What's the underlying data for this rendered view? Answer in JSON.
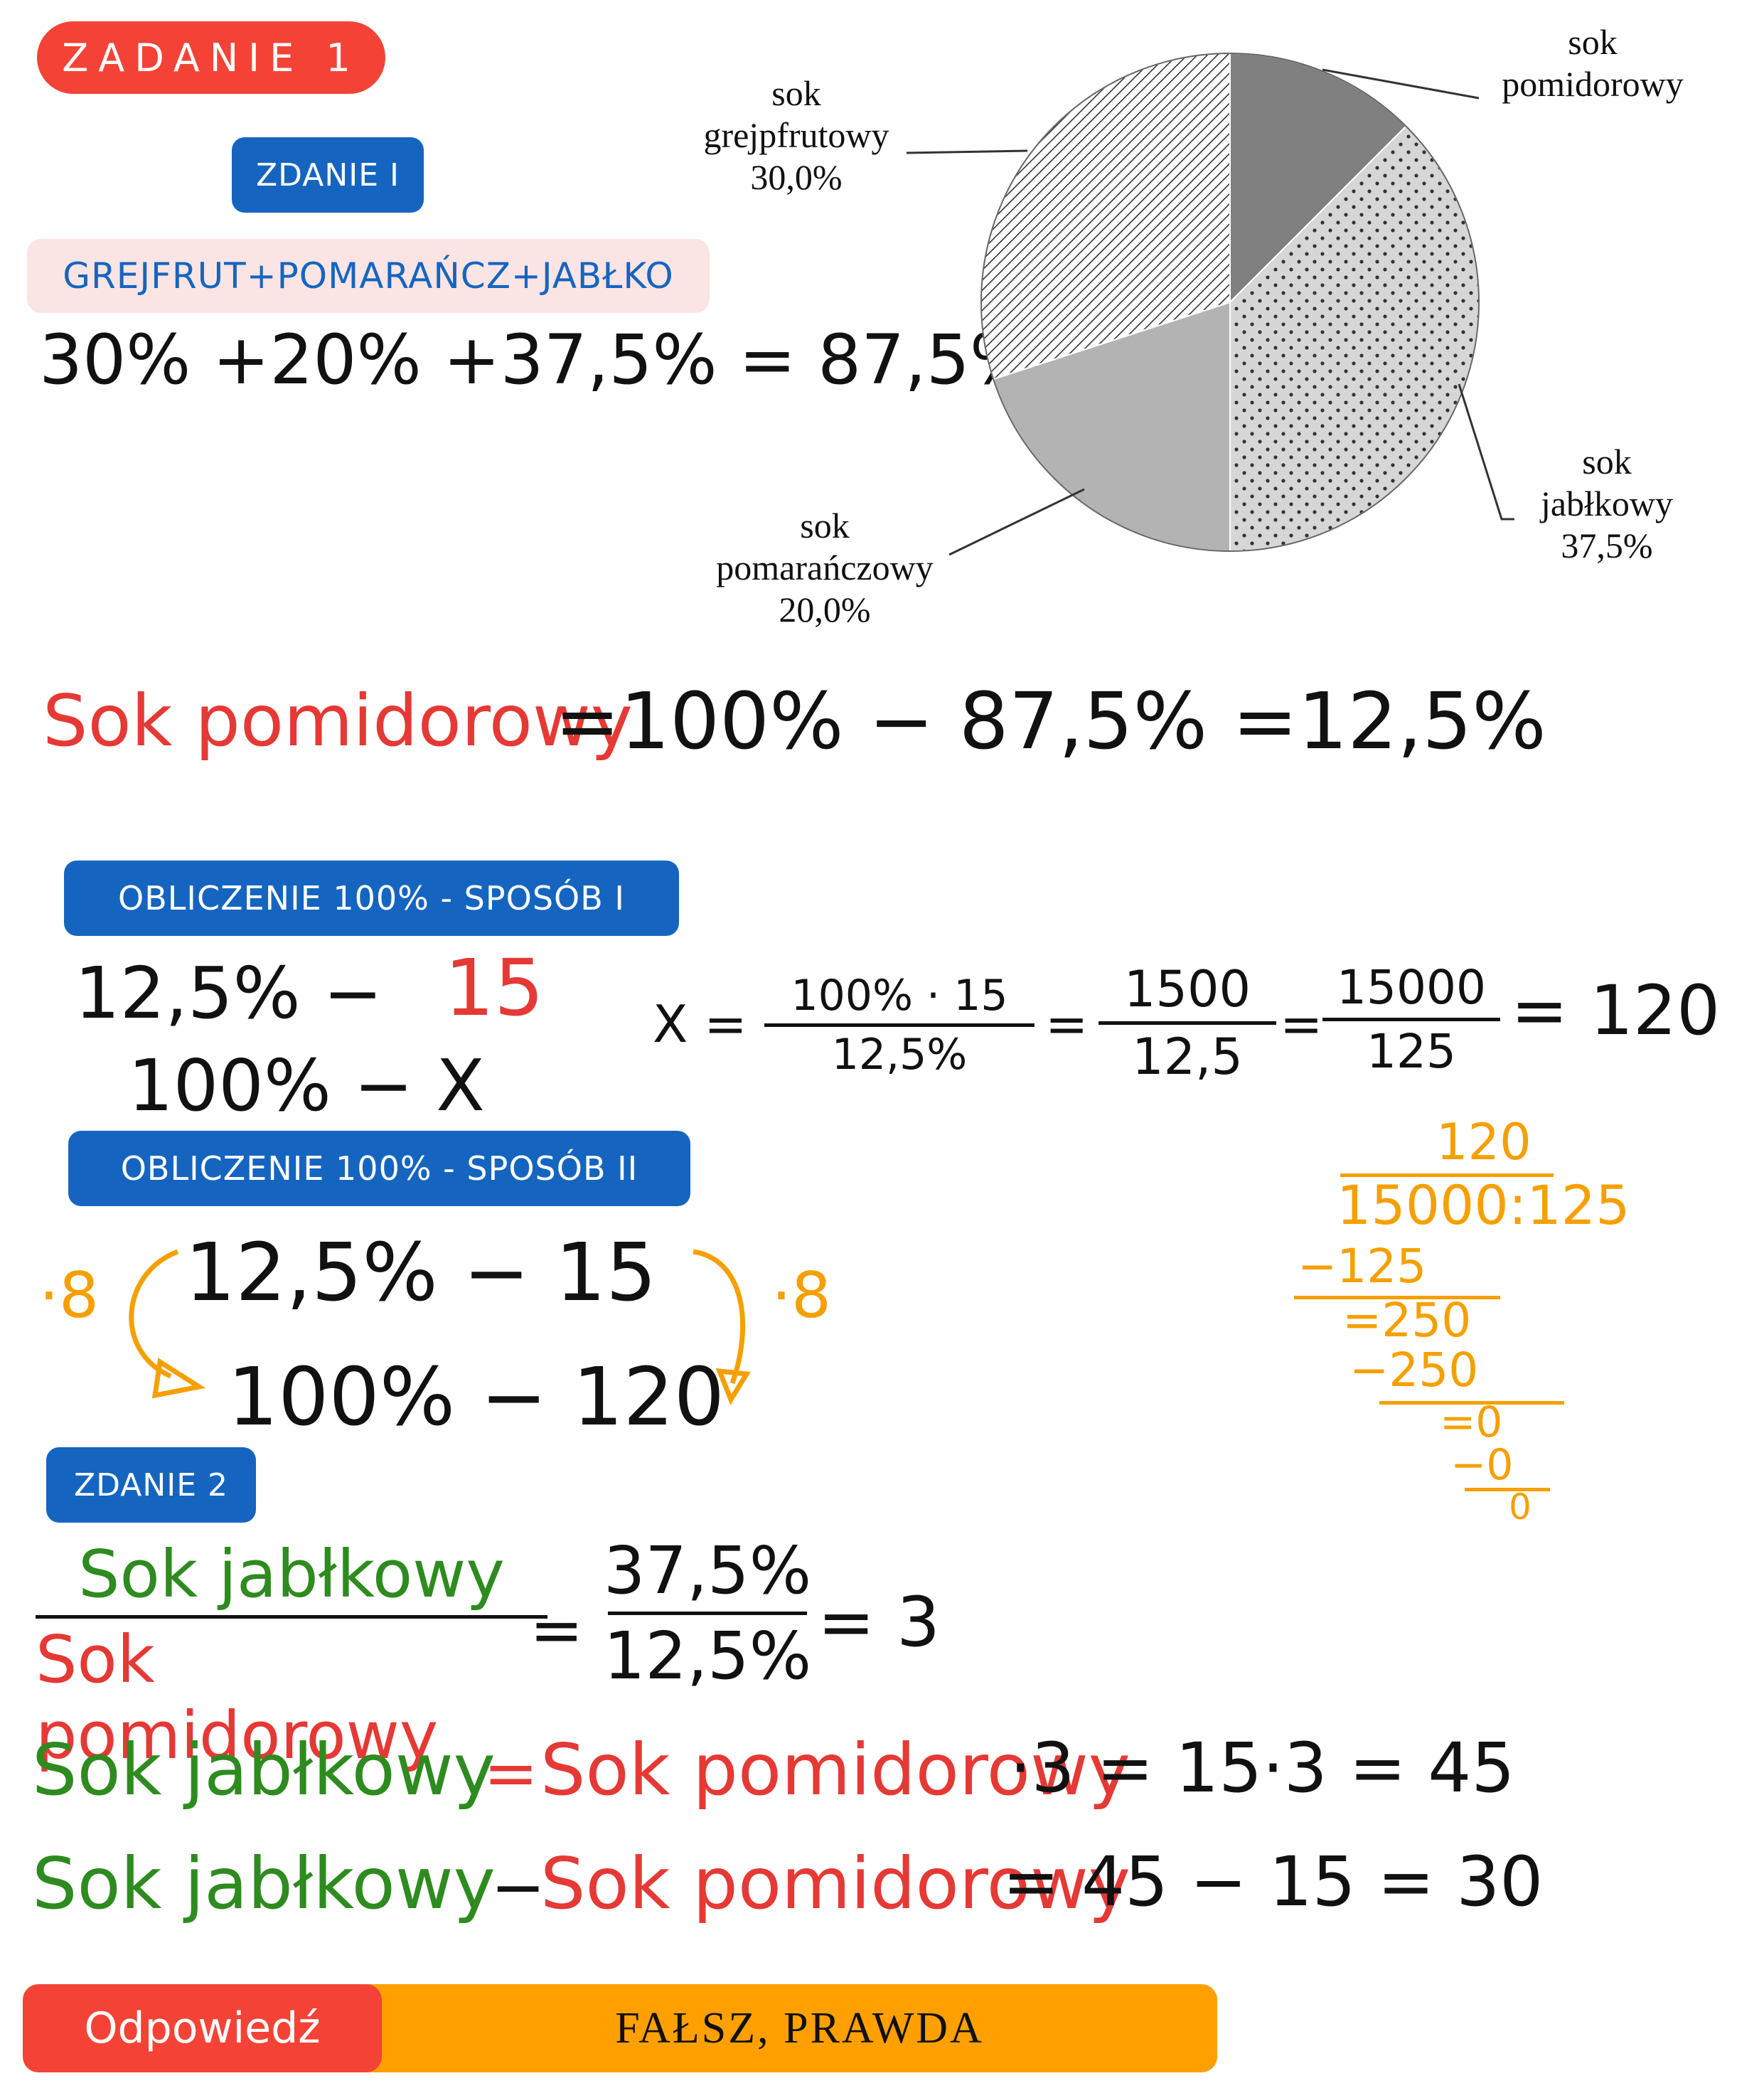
{
  "header": {
    "title": "ZADANIE 1"
  },
  "statement1": {
    "label": "ZDANIE I",
    "sum_label": "GREJFRUT+POMARAŃCZ+JABŁKO",
    "sum_eq": "30% +20% +37,5% = 87,5%",
    "pomidor_lhs": "Sok pomidorowy",
    "pomidor_rhs": "=100% − 87,5% =12,5%"
  },
  "chart_data": {
    "type": "pie",
    "slices": [
      {
        "label": "sok pomidorowy",
        "value": 12.5,
        "color": "#808080",
        "pattern": "solid"
      },
      {
        "label": "sok jabłkowy",
        "value": 37.5,
        "color": "#cfcfcf",
        "pattern": "dots"
      },
      {
        "label": "sok pomarańczowy",
        "value": 20.0,
        "color": "#b3b3b3",
        "pattern": "solid"
      },
      {
        "label": "sok grejpfrutowy",
        "value": 30.0,
        "color": "#ffffff",
        "pattern": "diagonal-hatch"
      }
    ],
    "labels": {
      "pomidor": {
        "line1": "sok",
        "line2": "pomidorowy",
        "pct": ""
      },
      "jablko": {
        "line1": "sok",
        "line2": "jabłkowy",
        "pct": "37,5%"
      },
      "pomarancz": {
        "line1": "sok",
        "line2": "pomarańczowy",
        "pct": "20,0%"
      },
      "grejpfrut": {
        "line1": "sok",
        "line2": "grejpfrutowy",
        "pct": "30,0%"
      }
    }
  },
  "method1": {
    "label": "OBLICZENIE 100% - SPOSÓB I",
    "row1_left": "12,5% −",
    "row1_right": "15",
    "row2": "100% − X",
    "x_eq": "X =",
    "f1_num": "100% · 15",
    "f1_den": "12,5%",
    "f2_num": "1500",
    "f2_den": "12,5",
    "f3_num": "15000",
    "f3_den": "125",
    "eq": "=",
    "result": "= 120"
  },
  "division": {
    "quotient": "120",
    "line": "15000:125",
    "s1": "−125",
    "r1": "=250",
    "s2": "−250",
    "r2": "=0",
    "s3": "−0",
    "r3": "0"
  },
  "method2": {
    "label": "OBLICZENIE 100% - SPOSÓB II",
    "mult_left": "·8",
    "mult_right": "·8",
    "row1": "12,5% − 15",
    "row2": "100% − 120"
  },
  "statement2": {
    "label": "ZDANIE 2",
    "ratio_num": "Sok jabłkowy",
    "ratio_den": "Sok pomidorowy",
    "eq": "=",
    "pct_num": "37,5%",
    "pct_den": "12,5%",
    "ratio_result": "= 3",
    "line2_green": "Sok jabłkowy",
    "line2_eq": "=",
    "line2_red": "Sok pomidorowy",
    "line2_rest": "·3 = 15·3 = 45",
    "line3_green": "Sok jabłkowy",
    "line3_minus": "−",
    "line3_red": "Sok pomidorowy",
    "line3_rest": "= 45 − 15 = 30"
  },
  "answer": {
    "label": "Odpowiedź",
    "value": "FAŁSZ, PRAWDA"
  },
  "colors": {
    "red": "#f44336",
    "blue": "#1565c0",
    "orange": "#ffa000",
    "green": "#2e8b1f",
    "pink_bg": "#fbe4e4"
  }
}
